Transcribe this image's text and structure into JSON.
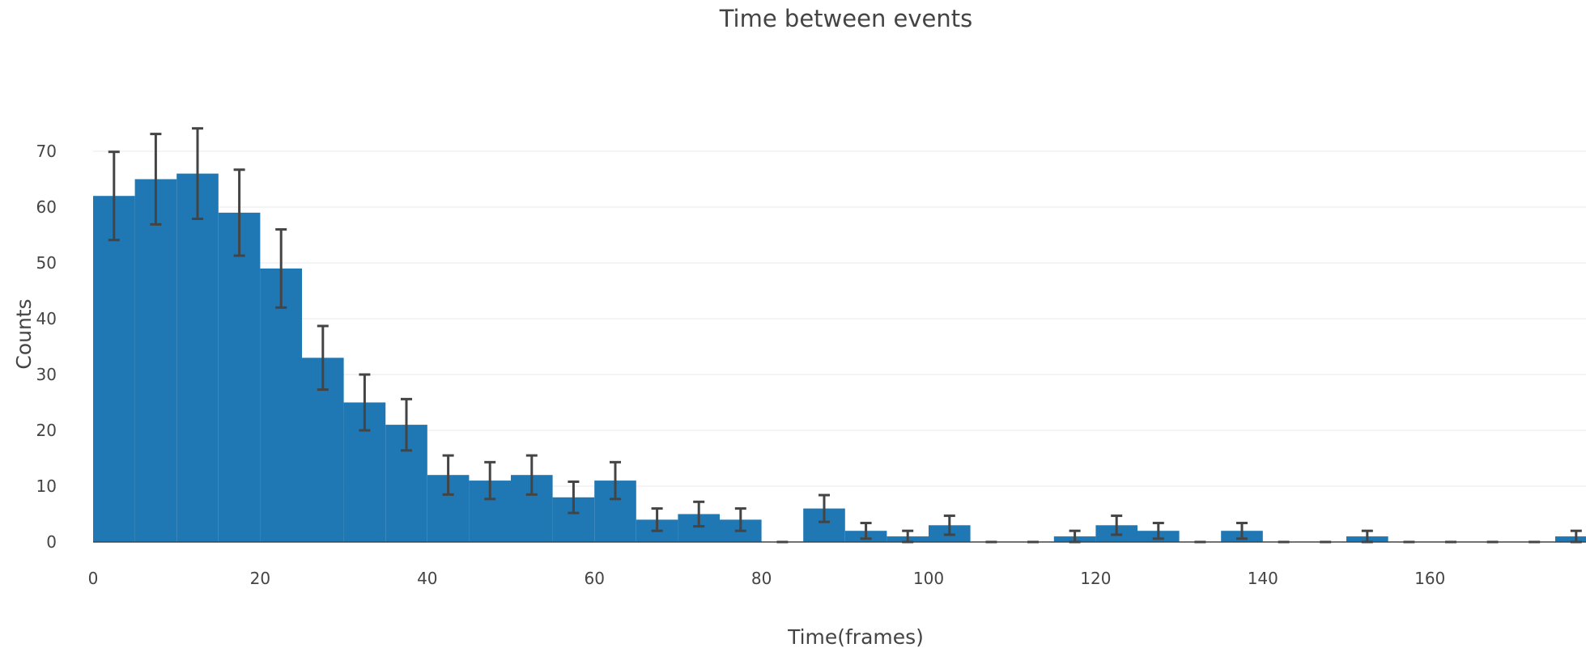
{
  "chart_data": {
    "type": "bar",
    "title": "Time between events",
    "xlabel": "Time(frames)",
    "ylabel": "Counts",
    "bin_width": 5,
    "xlim": [
      0,
      180
    ],
    "ylim": [
      0,
      80
    ],
    "x_ticks": [
      0,
      20,
      40,
      60,
      80,
      100,
      120,
      140,
      160
    ],
    "y_ticks": [
      0,
      10,
      20,
      30,
      40,
      50,
      60,
      70
    ],
    "grid": true,
    "bar_color": "#1f77b4",
    "error_color": "#444444",
    "bins": [
      {
        "x": 0,
        "value": 62,
        "error": 7.9
      },
      {
        "x": 5,
        "value": 65,
        "error": 8.1
      },
      {
        "x": 10,
        "value": 66,
        "error": 8.1
      },
      {
        "x": 15,
        "value": 59,
        "error": 7.7
      },
      {
        "x": 20,
        "value": 49,
        "error": 7.0
      },
      {
        "x": 25,
        "value": 33,
        "error": 5.7
      },
      {
        "x": 30,
        "value": 25,
        "error": 5.0
      },
      {
        "x": 35,
        "value": 21,
        "error": 4.6
      },
      {
        "x": 40,
        "value": 12,
        "error": 3.5
      },
      {
        "x": 45,
        "value": 11,
        "error": 3.3
      },
      {
        "x": 50,
        "value": 12,
        "error": 3.5
      },
      {
        "x": 55,
        "value": 8,
        "error": 2.8
      },
      {
        "x": 60,
        "value": 11,
        "error": 3.3
      },
      {
        "x": 65,
        "value": 4,
        "error": 2.0
      },
      {
        "x": 70,
        "value": 5,
        "error": 2.2
      },
      {
        "x": 75,
        "value": 4,
        "error": 2.0
      },
      {
        "x": 80,
        "value": 0,
        "error": 0
      },
      {
        "x": 85,
        "value": 6,
        "error": 2.4
      },
      {
        "x": 90,
        "value": 2,
        "error": 1.4
      },
      {
        "x": 95,
        "value": 1,
        "error": 1.0
      },
      {
        "x": 100,
        "value": 3,
        "error": 1.7
      },
      {
        "x": 105,
        "value": 0,
        "error": 0
      },
      {
        "x": 110,
        "value": 0,
        "error": 0
      },
      {
        "x": 115,
        "value": 1,
        "error": 1.0
      },
      {
        "x": 120,
        "value": 3,
        "error": 1.7
      },
      {
        "x": 125,
        "value": 2,
        "error": 1.4
      },
      {
        "x": 130,
        "value": 0,
        "error": 0
      },
      {
        "x": 135,
        "value": 2,
        "error": 1.4
      },
      {
        "x": 140,
        "value": 0,
        "error": 0
      },
      {
        "x": 145,
        "value": 0,
        "error": 0
      },
      {
        "x": 150,
        "value": 1,
        "error": 1.0
      },
      {
        "x": 155,
        "value": 0,
        "error": 0
      },
      {
        "x": 160,
        "value": 0,
        "error": 0
      },
      {
        "x": 165,
        "value": 0,
        "error": 0
      },
      {
        "x": 170,
        "value": 0,
        "error": 0
      },
      {
        "x": 175,
        "value": 1,
        "error": 1.0
      }
    ]
  }
}
